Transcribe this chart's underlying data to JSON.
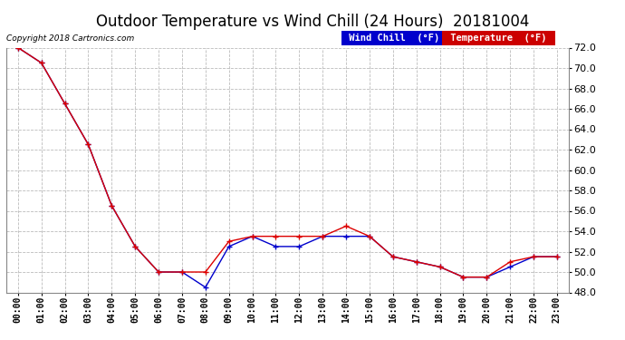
{
  "title": "Outdoor Temperature vs Wind Chill (24 Hours)  20181004",
  "copyright": "Copyright 2018 Cartronics.com",
  "x_labels": [
    "00:00",
    "01:00",
    "02:00",
    "03:00",
    "04:00",
    "05:00",
    "06:00",
    "07:00",
    "08:00",
    "09:00",
    "10:00",
    "11:00",
    "12:00",
    "13:00",
    "14:00",
    "15:00",
    "16:00",
    "17:00",
    "18:00",
    "19:00",
    "20:00",
    "21:00",
    "22:00",
    "23:00"
  ],
  "temperature": [
    72.0,
    70.5,
    66.5,
    62.5,
    56.5,
    52.5,
    50.0,
    50.0,
    50.0,
    53.0,
    53.5,
    53.5,
    53.5,
    53.5,
    54.5,
    53.5,
    51.5,
    51.0,
    50.5,
    49.5,
    49.5,
    51.0,
    51.5,
    51.5
  ],
  "wind_chill": [
    72.0,
    70.5,
    66.5,
    62.5,
    56.5,
    52.5,
    50.0,
    50.0,
    48.5,
    52.5,
    53.5,
    52.5,
    52.5,
    53.5,
    53.5,
    53.5,
    51.5,
    51.0,
    50.5,
    49.5,
    49.5,
    50.5,
    51.5,
    51.5
  ],
  "ylim": [
    48.0,
    72.0
  ],
  "yticks": [
    48.0,
    50.0,
    52.0,
    54.0,
    56.0,
    58.0,
    60.0,
    62.0,
    64.0,
    66.0,
    68.0,
    70.0,
    72.0
  ],
  "temp_color": "#dd0000",
  "wind_chill_color": "#0000cc",
  "bg_color": "#ffffff",
  "plot_bg_color": "#ffffff",
  "grid_color": "#bbbbbb",
  "title_fontsize": 12,
  "legend_temp_bg": "#cc0000",
  "legend_wc_bg": "#0000cc",
  "legend_text_color": "#ffffff",
  "legend_wc_label": "Wind Chill  (°F)",
  "legend_temp_label": "Temperature  (°F)"
}
